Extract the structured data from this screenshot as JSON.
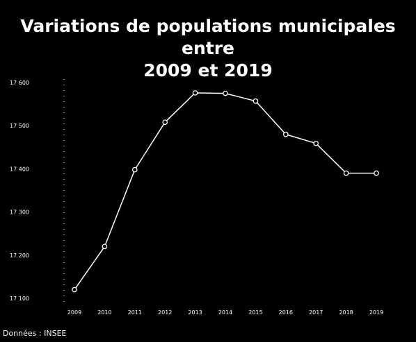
{
  "chart_data": {
    "type": "line",
    "title_lines": [
      "Variations de populations municipales entre",
      "2009 et 2019"
    ],
    "xlabel": "",
    "ylabel": "",
    "x": [
      "2009",
      "2010",
      "2011",
      "2012",
      "2013",
      "2014",
      "2015",
      "2016",
      "2017",
      "2018",
      "2019"
    ],
    "y_ticks": [
      "17 100",
      "17 200",
      "17 300",
      "17 400",
      "17 500",
      "17 600"
    ],
    "ylim": [
      17100,
      17600
    ],
    "series": [
      {
        "name": "",
        "values": [
          17120,
          17220,
          17398,
          17508,
          17576,
          17575,
          17557,
          17480,
          17459,
          17390,
          17390
        ]
      }
    ],
    "grid": false,
    "colors": {
      "background": "#000000",
      "line": "#ffffff",
      "text": "#ffffff",
      "axis": "#ffffff"
    },
    "source": "Données : INSEE"
  }
}
